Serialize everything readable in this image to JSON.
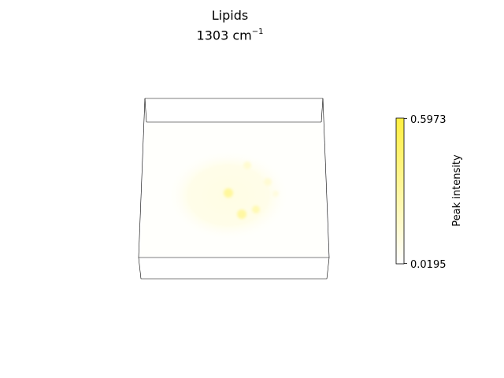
{
  "chart_data": {
    "type": "heatmap",
    "title_line1": "Lipids",
    "title_line2_value": "1303 cm",
    "title_line2_exponent": "−1",
    "colorbar": {
      "label": "Peak intensity",
      "min": 0.0195,
      "max": 0.5973,
      "min_label": "0.0195",
      "max_label": "0.5973",
      "colormap": [
        "#ffffff",
        "#ffef40"
      ]
    },
    "background_level": 0.03,
    "blob_level": 0.1,
    "spots": [
      {
        "value": 0.32
      },
      {
        "value": 0.3
      },
      {
        "value": 0.25
      },
      {
        "value": 0.15
      },
      {
        "value": 0.16
      },
      {
        "value": 0.12
      }
    ]
  }
}
